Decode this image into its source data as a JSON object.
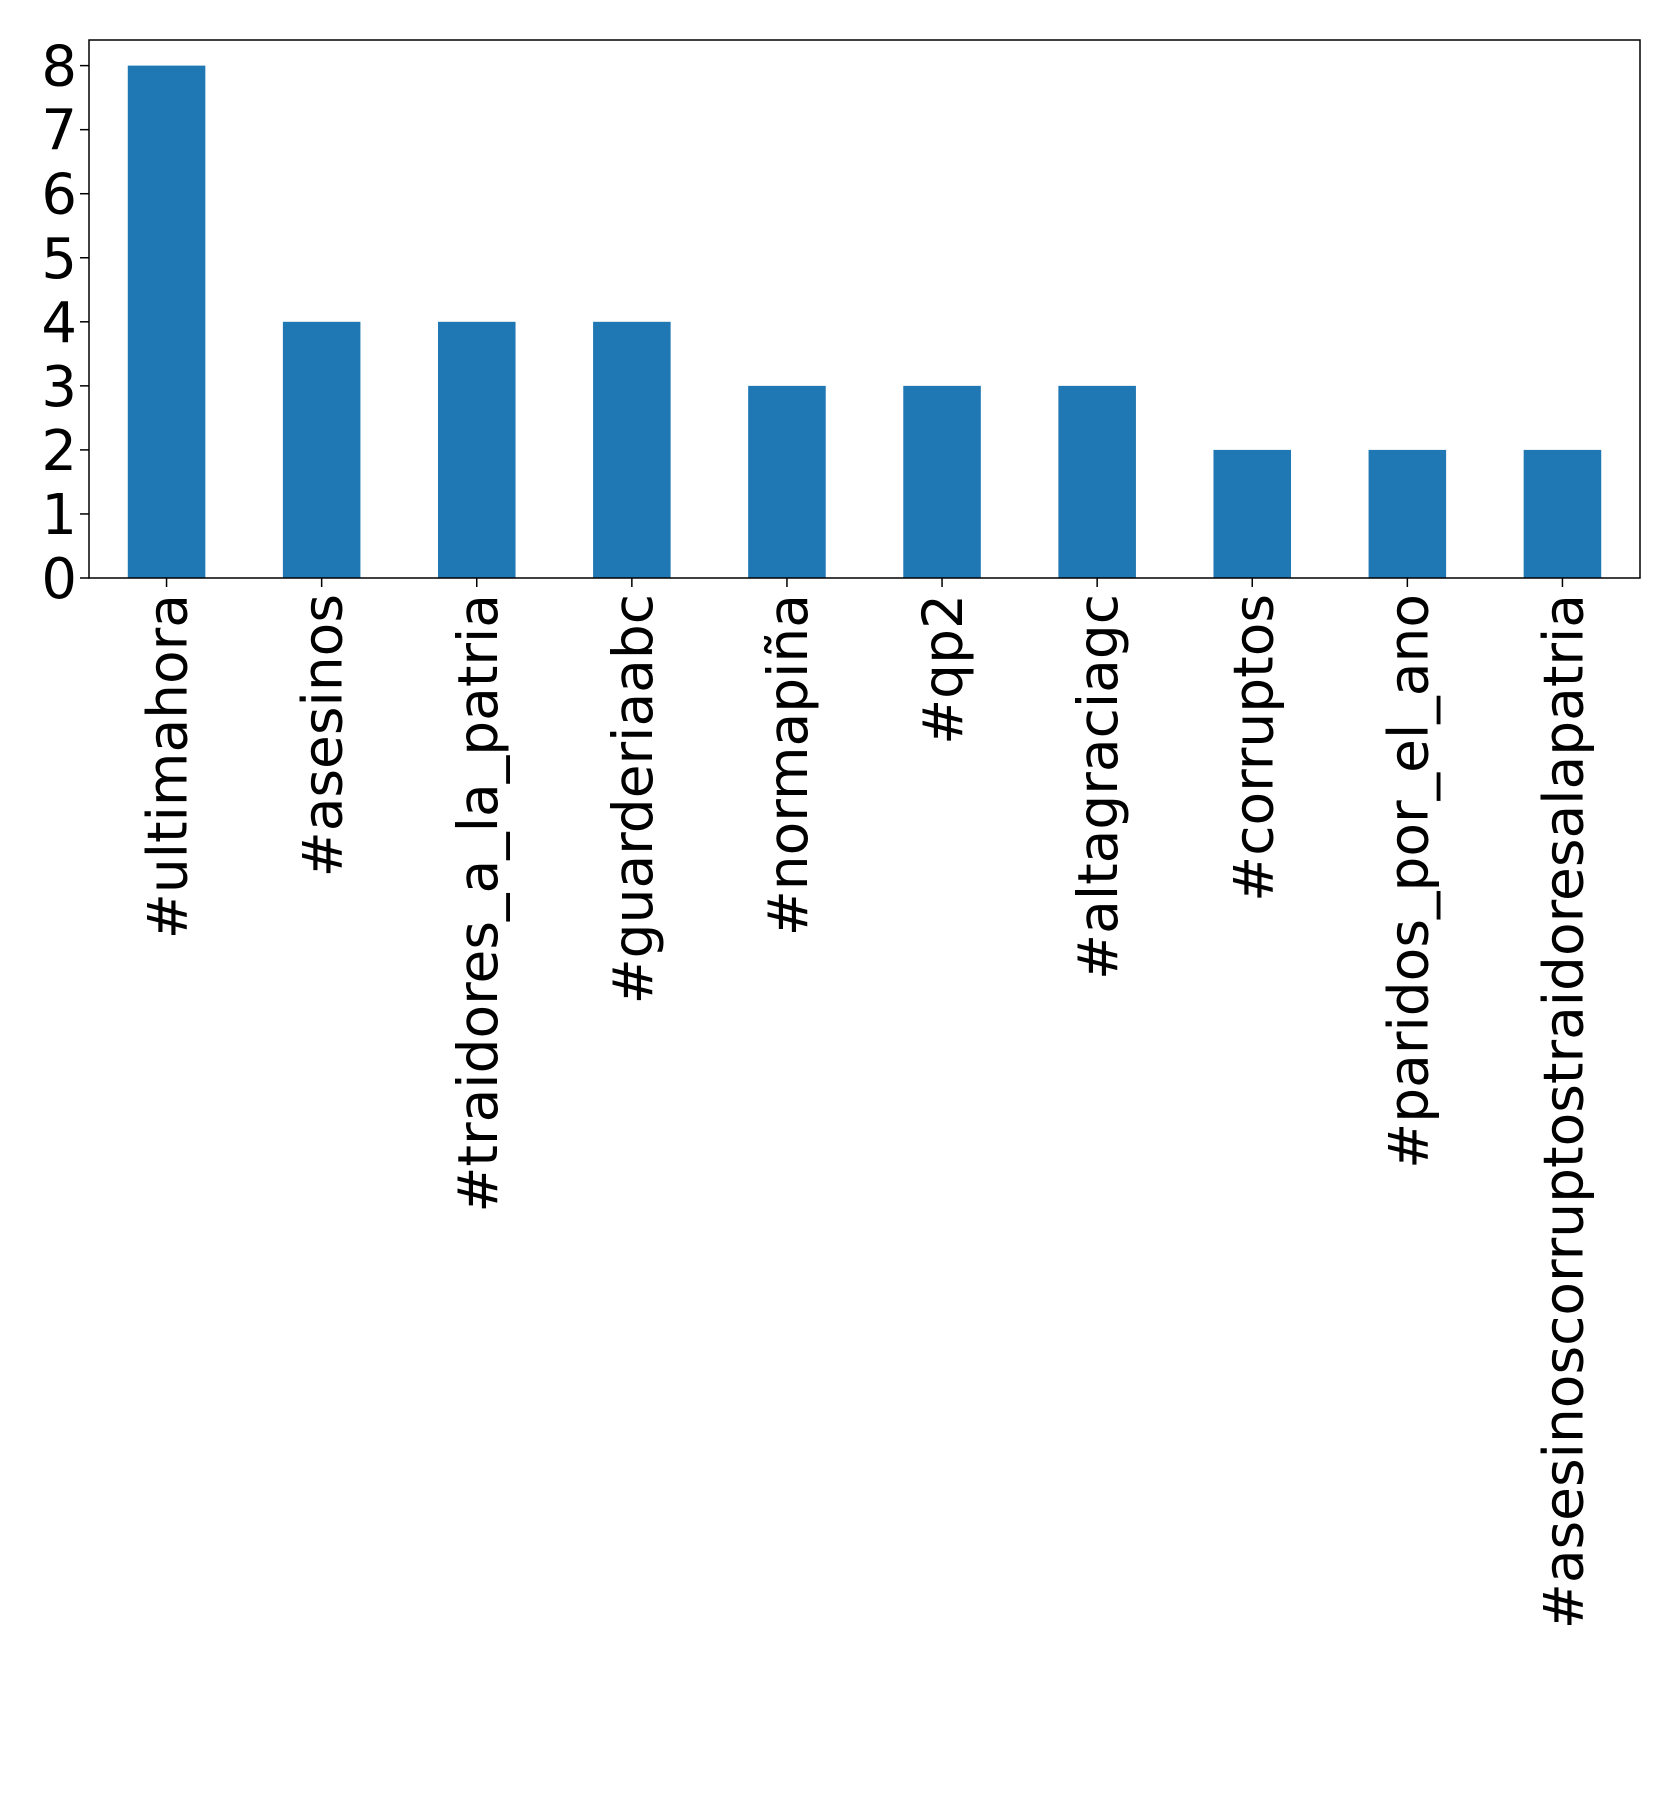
{
  "chart_data": {
    "type": "bar",
    "title": "",
    "xlabel": "",
    "ylabel": "",
    "categories": [
      "#ultimahora",
      "#asesinos",
      "#traidores_a_la_patria",
      "#guarderiaabc",
      "#normapiña",
      "#qp2",
      "#altagraciagc",
      "#corruptos",
      "#paridos_por_el_ano",
      "#asesinoscorruptostraidoresalapatria"
    ],
    "values": [
      8,
      4,
      4,
      4,
      3,
      3,
      3,
      2,
      2,
      2
    ],
    "ylim": [
      0,
      8.4
    ],
    "yticks": [
      0,
      1,
      2,
      3,
      4,
      5,
      6,
      7,
      8
    ],
    "grid": false,
    "legend": "none",
    "bar_color": "#1f77b4"
  }
}
